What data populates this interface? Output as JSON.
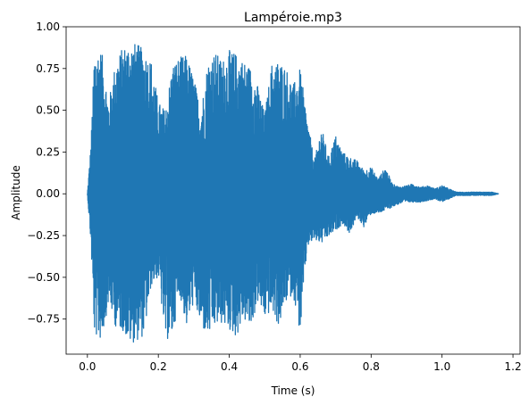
{
  "chart_data": {
    "type": "line",
    "title": "Lampéroie.mp3",
    "xlabel": "Time (s)",
    "ylabel": "Amplitude",
    "xlim": [
      -0.06,
      1.22
    ],
    "ylim": [
      -0.96,
      1.0
    ],
    "xticks": [
      0.0,
      0.2,
      0.4,
      0.6,
      0.8,
      1.0,
      1.2
    ],
    "xtick_labels": [
      "0.0",
      "0.2",
      "0.4",
      "0.6",
      "0.8",
      "1.0",
      "1.2"
    ],
    "yticks": [
      -0.75,
      -0.5,
      -0.25,
      0.0,
      0.25,
      0.5,
      0.75,
      1.0
    ],
    "ytick_labels": [
      "−0.75",
      "−0.50",
      "−0.25",
      "0.00",
      "0.25",
      "0.50",
      "0.75",
      "1.00"
    ],
    "grid": false,
    "series": [
      {
        "color": "#1f77b4",
        "envelope": {
          "t": [
            0.0,
            0.01,
            0.02,
            0.04,
            0.06,
            0.08,
            0.1,
            0.12,
            0.14,
            0.16,
            0.18,
            0.2,
            0.22,
            0.24,
            0.26,
            0.28,
            0.3,
            0.32,
            0.34,
            0.36,
            0.38,
            0.4,
            0.42,
            0.44,
            0.46,
            0.48,
            0.5,
            0.52,
            0.54,
            0.56,
            0.58,
            0.6,
            0.62,
            0.64,
            0.66,
            0.68,
            0.7,
            0.72,
            0.74,
            0.76,
            0.78,
            0.8,
            0.82,
            0.84,
            0.86,
            0.88,
            0.9,
            0.92,
            0.94,
            0.96,
            0.98,
            1.0,
            1.02,
            1.04,
            1.06,
            1.08,
            1.1,
            1.12,
            1.14,
            1.16
          ],
          "upper": [
            0.0,
            0.3,
            0.87,
            0.86,
            0.55,
            0.8,
            0.88,
            0.91,
            0.9,
            0.86,
            0.8,
            0.55,
            0.5,
            0.78,
            0.82,
            0.83,
            0.7,
            0.5,
            0.8,
            0.85,
            0.8,
            0.86,
            0.84,
            0.8,
            0.76,
            0.65,
            0.48,
            0.78,
            0.8,
            0.76,
            0.65,
            0.75,
            0.45,
            0.2,
            0.4,
            0.22,
            0.35,
            0.25,
            0.22,
            0.2,
            0.14,
            0.16,
            0.09,
            0.16,
            0.06,
            0.04,
            0.05,
            0.06,
            0.04,
            0.05,
            0.03,
            0.05,
            0.03,
            0.01,
            0.01,
            0.01,
            0.01,
            0.01,
            0.01,
            0.0
          ],
          "lower": [
            0.0,
            -0.3,
            -0.85,
            -0.88,
            -0.65,
            -0.8,
            -0.82,
            -0.9,
            -0.88,
            -0.85,
            -0.55,
            -0.5,
            -0.88,
            -0.86,
            -0.6,
            -0.8,
            -0.65,
            -0.8,
            -0.86,
            -0.8,
            -0.78,
            -0.82,
            -0.86,
            -0.75,
            -0.82,
            -0.65,
            -0.75,
            -0.7,
            -0.8,
            -0.65,
            -0.6,
            -0.84,
            -0.32,
            -0.28,
            -0.3,
            -0.26,
            -0.22,
            -0.18,
            -0.24,
            -0.14,
            -0.2,
            -0.12,
            -0.12,
            -0.1,
            -0.08,
            -0.06,
            -0.05,
            -0.05,
            -0.05,
            -0.04,
            -0.03,
            -0.05,
            -0.03,
            -0.01,
            -0.01,
            -0.01,
            -0.01,
            -0.01,
            -0.01,
            0.0
          ]
        }
      }
    ]
  }
}
